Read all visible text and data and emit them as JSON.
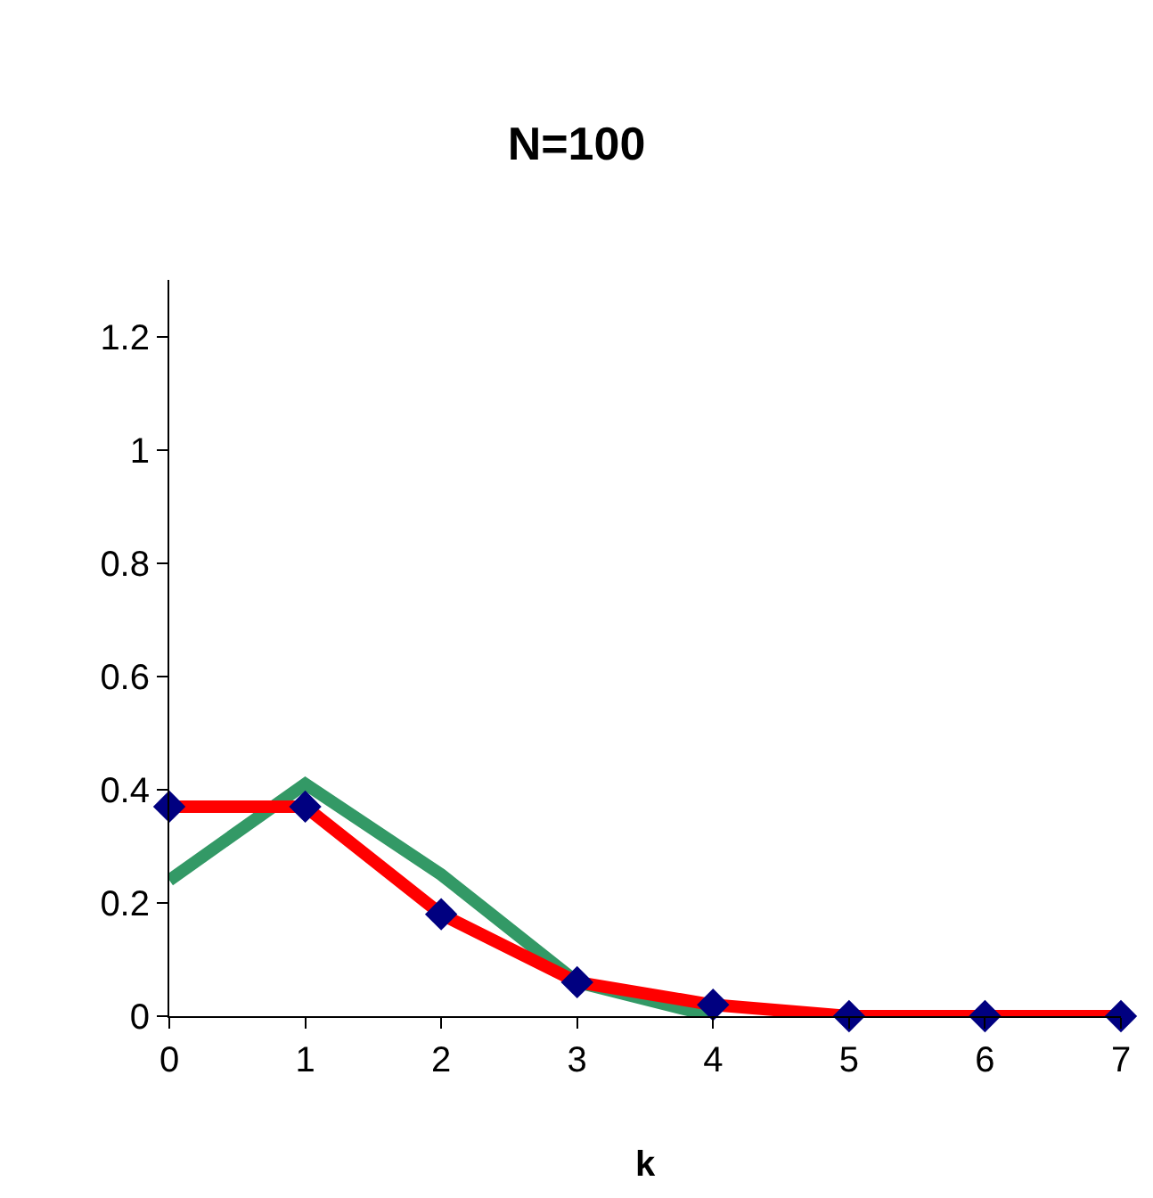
{
  "chart_data": {
    "type": "line",
    "title": "N=100",
    "xlabel": "k",
    "x": [
      0,
      1,
      2,
      3,
      4,
      5,
      6,
      7
    ],
    "series": [
      {
        "type": "line",
        "color": "#339966",
        "values": [
          0.24,
          0.41,
          0.25,
          0.06,
          0,
          null,
          null,
          null
        ],
        "marker": "none"
      },
      {
        "color": "#ff0000",
        "values": [
          0.37,
          0.37,
          0.18,
          0.06,
          0.02,
          0,
          0,
          0
        ],
        "marker": "none"
      },
      {
        "type": "scatter",
        "color": "#000080",
        "values": [
          0.37,
          0.37,
          0.18,
          0.06,
          0.02,
          0,
          0,
          0
        ],
        "marker": "diamond"
      }
    ],
    "xlim": [
      0,
      7
    ],
    "xticks": [
      0,
      1,
      2,
      3,
      4,
      5,
      6,
      7
    ],
    "ylim": [
      0,
      1.3
    ],
    "yticks": [
      0,
      0.2,
      0.4,
      0.6,
      0.8,
      1,
      1.2
    ]
  }
}
